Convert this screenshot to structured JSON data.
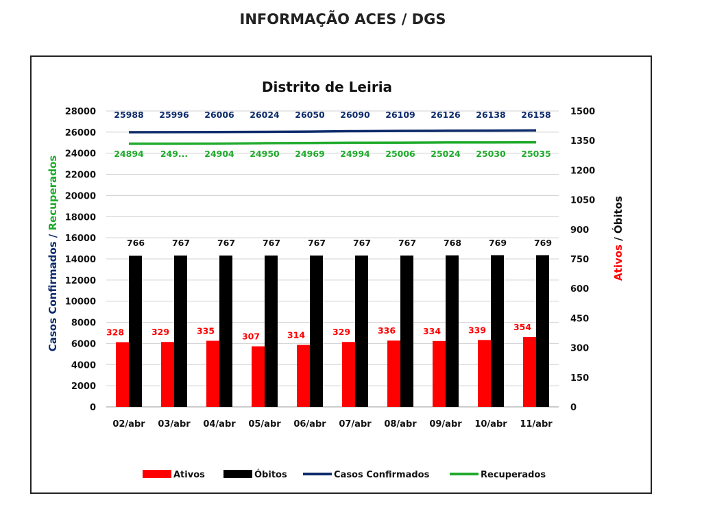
{
  "page": {
    "title": "INFORMAÇÃO ACES / DGS"
  },
  "colors": {
    "ativos": "#ff0000",
    "obitos": "#000000",
    "confirmados": "#0d2b6b",
    "recuperados": "#1faa2c",
    "grid": "#d0d0d0"
  },
  "chart_data": {
    "type": "bar",
    "title": "Distrito de Leiria",
    "categories": [
      "02/abr",
      "03/abr",
      "04/abr",
      "05/abr",
      "06/abr",
      "07/abr",
      "08/abr",
      "09/abr",
      "10/abr",
      "11/abr"
    ],
    "ylabel_left": {
      "part1": "Casos Confirmados",
      "sep": " / ",
      "part2": "Recuperados"
    },
    "ylabel_right": {
      "part1": "Ativos",
      "sep": " / ",
      "part2": "Óbitos"
    },
    "ylim_left": [
      0,
      28000
    ],
    "yticks_left": [
      0,
      2000,
      4000,
      6000,
      8000,
      10000,
      12000,
      14000,
      16000,
      18000,
      20000,
      22000,
      24000,
      26000,
      28000
    ],
    "ylim_right": [
      0,
      1500
    ],
    "yticks_right": [
      0,
      150,
      300,
      450,
      600,
      750,
      900,
      1050,
      1200,
      1350,
      1500
    ],
    "grid": true,
    "legend_position": "bottom",
    "series": [
      {
        "name": "Ativos",
        "type": "bar",
        "axis": "right",
        "values": [
          328,
          329,
          335,
          307,
          314,
          329,
          336,
          334,
          339,
          354
        ],
        "labels": [
          "328",
          "329",
          "335",
          "307",
          "314",
          "329",
          "336",
          "334",
          "339",
          "354"
        ]
      },
      {
        "name": "Óbitos",
        "type": "bar",
        "axis": "right",
        "values": [
          766,
          767,
          767,
          767,
          767,
          767,
          767,
          768,
          769,
          769
        ],
        "labels": [
          "766",
          "767",
          "767",
          "767",
          "767",
          "767",
          "767",
          "768",
          "769",
          "769"
        ]
      },
      {
        "name": "Casos Confirmados",
        "type": "line",
        "axis": "left",
        "values": [
          25988,
          25996,
          26006,
          26024,
          26050,
          26090,
          26109,
          26126,
          26138,
          26158
        ],
        "labels": [
          "25988",
          "25996",
          "26006",
          "26024",
          "26050",
          "26090",
          "26109",
          "26126",
          "26138",
          "26158"
        ]
      },
      {
        "name": "Recuperados",
        "type": "line",
        "axis": "left",
        "values": [
          24894,
          24896,
          24904,
          24950,
          24969,
          24994,
          25006,
          25024,
          25030,
          25035
        ],
        "labels": [
          "24894",
          "249...",
          "24904",
          "24950",
          "24969",
          "24994",
          "25006",
          "25024",
          "25030",
          "25035"
        ]
      }
    ]
  }
}
